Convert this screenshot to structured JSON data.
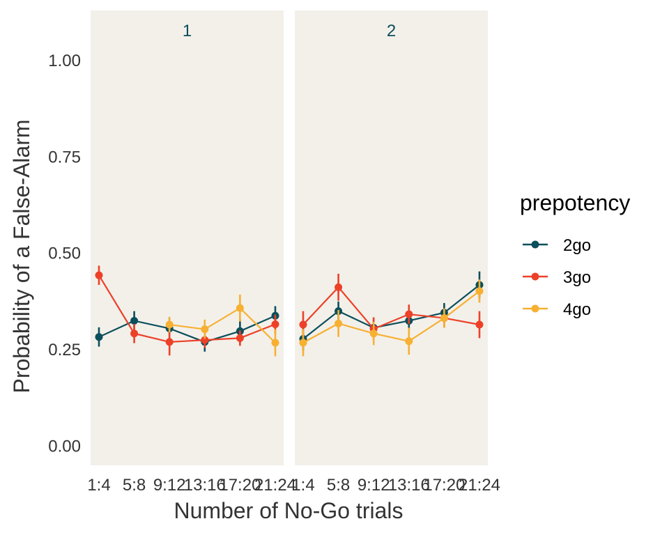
{
  "chart_data": {
    "type": "line",
    "xlabel": "Number of No-Go trials",
    "ylabel": "Probability of a False-Alarm",
    "ylim": [
      -0.05,
      1.13
    ],
    "yticks": [
      0.0,
      0.25,
      0.5,
      0.75,
      1.0
    ],
    "ytick_labels": [
      "0.00",
      "0.25",
      "0.50",
      "0.75",
      "1.00"
    ],
    "categories": [
      "1:4",
      "5:8",
      "9:12",
      "13:16",
      "17:20",
      "21:24"
    ],
    "legend": {
      "title": "prepotency",
      "position": "right",
      "entries": [
        "2go",
        "3go",
        "4go"
      ]
    },
    "colors": {
      "2go": "#0b4f5c",
      "3go": "#ec4128",
      "4go": "#f7b032",
      "panel_bg": "#f3f0ea"
    },
    "panels": [
      {
        "strip": "1",
        "series": [
          {
            "name": "2go",
            "values": [
              0.283,
              0.325,
              0.305,
              0.27,
              0.298,
              0.338
            ],
            "err": [
              0.025,
              0.025,
              0.03,
              0.025,
              0.03,
              0.025
            ]
          },
          {
            "name": "3go",
            "values": [
              0.443,
              0.292,
              0.27,
              0.275,
              0.28,
              0.316
            ],
            "err": [
              0.025,
              0.025,
              0.035,
              0.02,
              0.02,
              0.025
            ]
          },
          {
            "name": "4go",
            "values": [
              null,
              null,
              0.315,
              0.303,
              0.358,
              0.268
            ],
            "err": [
              0,
              0,
              0.02,
              0.025,
              0.035,
              0.035
            ]
          }
        ]
      },
      {
        "strip": "2",
        "series": [
          {
            "name": "2go",
            "values": [
              0.278,
              0.35,
              0.307,
              0.325,
              0.346,
              0.418
            ],
            "err": [
              0.03,
              0.025,
              0.025,
              0.025,
              0.025,
              0.035
            ]
          },
          {
            "name": "3go",
            "values": [
              0.315,
              0.412,
              0.304,
              0.342,
              0.332,
              0.315
            ],
            "err": [
              0.035,
              0.035,
              0.03,
              0.025,
              0.025,
              0.035
            ]
          },
          {
            "name": "4go",
            "values": [
              0.268,
              0.318,
              0.292,
              0.272,
              0.332,
              0.402
            ],
            "err": [
              0.035,
              0.035,
              0.03,
              0.035,
              0.025,
              0.03
            ]
          }
        ]
      }
    ]
  }
}
